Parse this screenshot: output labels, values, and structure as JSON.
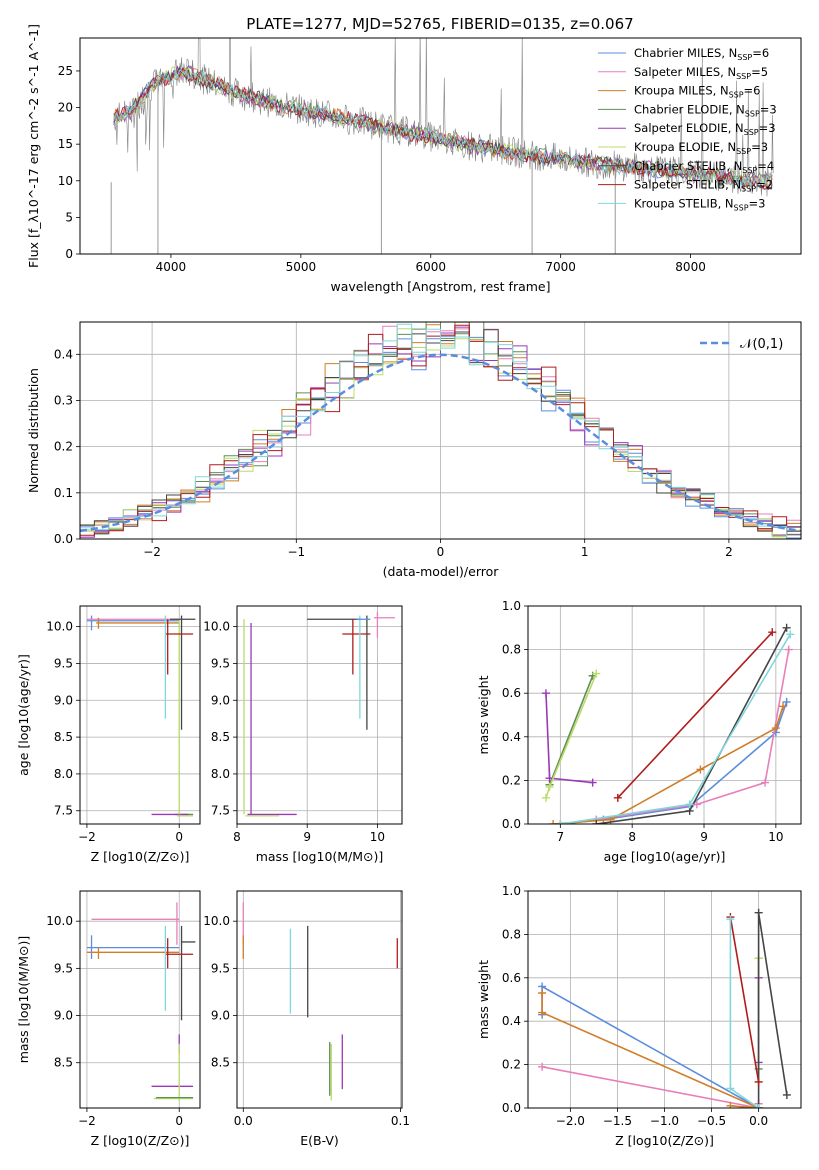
{
  "page_title": "PLATE=1277, MJD=52765, FIBERID=0135, z=0.067",
  "colors": {
    "Chabrier MILES": "#5b8ddf",
    "Salpeter MILES": "#e87fb9",
    "Kroupa MILES": "#d07e2a",
    "Chabrier ELODIE": "#5f8f55",
    "Salpeter ELODIE": "#9a39b8",
    "Kroupa ELODIE": "#b9dc6a",
    "Chabrier STELIB": "#454545",
    "Salpeter STELIB": "#b01c1c",
    "Kroupa STELIB": "#7fd7dc"
  },
  "chart_data": [
    {
      "id": "spectrum",
      "type": "line",
      "title": "PLATE=1277, MJD=52765, FIBERID=0135, z=0.067",
      "xlabel": "wavelength [Angstrom, rest frame]",
      "ylabel": "Flux [f_λ10^-17 erg cm^-2 s^-1 A^-1]",
      "xlim": [
        3300,
        8850
      ],
      "ylim": [
        0,
        29.5
      ],
      "xticks": [
        4000,
        5000,
        6000,
        7000,
        8000
      ],
      "yticks": [
        0,
        5,
        10,
        15,
        20,
        25
      ],
      "grid": false,
      "legend": "top-right",
      "legend_entries": [
        {
          "model": "Chabrier MILES",
          "nssp": "6"
        },
        {
          "model": "Salpeter MILES",
          "nssp": "5"
        },
        {
          "model": "Kroupa MILES",
          "nssp": "6"
        },
        {
          "model": "Chabrier ELODIE",
          "nssp": "3"
        },
        {
          "model": "Salpeter ELODIE",
          "nssp": "3"
        },
        {
          "model": "Kroupa ELODIE",
          "nssp": "3"
        },
        {
          "model": "Chabrier STELIB",
          "nssp": "4"
        },
        {
          "model": "Salpeter STELIB",
          "nssp": "2"
        },
        {
          "model": "Kroupa STELIB",
          "nssp": "3"
        }
      ],
      "continuum": {
        "x": [
          3550,
          3700,
          3850,
          4000,
          4100,
          4300,
          4500,
          4800,
          5200,
          5600,
          6000,
          6400,
          6800,
          7200,
          7600,
          8000,
          8400,
          8650
        ],
        "y": [
          18.5,
          19.5,
          23.0,
          24.5,
          25.0,
          23.5,
          22.0,
          20.5,
          19.0,
          17.5,
          16.0,
          14.5,
          13.5,
          12.5,
          11.8,
          11.0,
          10.2,
          9.8
        ]
      }
    },
    {
      "id": "residuals",
      "type": "histogram",
      "xlabel": "(data-model)/error",
      "ylabel": "Normed distribution",
      "xlim": [
        -2.5,
        2.5
      ],
      "ylim": [
        0,
        0.47
      ],
      "xticks": [
        -2,
        -1,
        0,
        1,
        2
      ],
      "yticks": [
        0.0,
        0.1,
        0.2,
        0.3,
        0.4
      ],
      "grid": true,
      "legend": "top-right",
      "legend_label": "𝒩(0,1)",
      "bin_width": 0.1
    },
    {
      "id": "age-vs-z",
      "type": "scatter",
      "xlabel": "Z [log10(Z/Z⊙)]",
      "ylabel": "age [log10(age/yr)]",
      "xlim": [
        -2.15,
        0.45
      ],
      "ylim": [
        7.32,
        10.28
      ],
      "xticks": [
        -2,
        0
      ],
      "yticks": [
        7.5,
        8.0,
        8.5,
        9.0,
        9.5,
        10.0
      ],
      "grid": true
    },
    {
      "id": "age-vs-mass",
      "type": "scatter",
      "xlabel": "mass [log10(M/M⊙)]",
      "xlim": [
        8.0,
        10.35
      ],
      "ylim": [
        7.32,
        10.28
      ],
      "xticks": [
        8,
        9,
        10
      ],
      "yticks": [
        7.5,
        8.0,
        8.5,
        9.0,
        9.5,
        10.0
      ],
      "grid": true
    },
    {
      "id": "weight-vs-age",
      "type": "line",
      "xlabel": "age [log10(age/yr)]",
      "ylabel": "mass weight",
      "xlim": [
        6.55,
        10.35
      ],
      "ylim": [
        0,
        1.0
      ],
      "xticks": [
        7,
        8,
        9,
        10
      ],
      "yticks": [
        0.0,
        0.2,
        0.4,
        0.6,
        0.8,
        1.0
      ],
      "grid": true,
      "series": [
        {
          "model": "Chabrier MILES",
          "x": [
            7.0,
            7.6,
            8.8,
            10.0,
            10.15
          ],
          "y": [
            0.0,
            0.02,
            0.08,
            0.42,
            0.56
          ]
        },
        {
          "model": "Salpeter MILES",
          "x": [
            7.0,
            7.5,
            8.9,
            9.85,
            10.18
          ],
          "y": [
            0.0,
            0.02,
            0.09,
            0.19,
            0.8
          ]
        },
        {
          "model": "Kroupa MILES",
          "x": [
            6.9,
            7.7,
            8.95,
            10.0,
            10.1
          ],
          "y": [
            0.0,
            0.02,
            0.25,
            0.44,
            0.54
          ]
        },
        {
          "model": "Chabrier ELODIE",
          "x": [
            6.85,
            7.45
          ],
          "y": [
            0.18,
            0.68
          ]
        },
        {
          "model": "Salpeter ELODIE",
          "x": [
            6.8,
            6.85,
            7.45
          ],
          "y": [
            0.6,
            0.21,
            0.19
          ]
        },
        {
          "model": "Kroupa ELODIE",
          "x": [
            6.8,
            6.85,
            7.5
          ],
          "y": [
            0.12,
            0.17,
            0.69
          ]
        },
        {
          "model": "Chabrier STELIB",
          "x": [
            7.5,
            8.8,
            10.15
          ],
          "y": [
            0.0,
            0.06,
            0.9
          ]
        },
        {
          "model": "Salpeter STELIB",
          "x": [
            7.8,
            9.95
          ],
          "y": [
            0.12,
            0.88
          ]
        },
        {
          "model": "Kroupa STELIB",
          "x": [
            7.0,
            8.8,
            10.2
          ],
          "y": [
            0.0,
            0.09,
            0.87
          ]
        }
      ]
    },
    {
      "id": "mass-vs-z",
      "type": "scatter",
      "xlabel": "Z [log10(Z/Z⊙)]",
      "ylabel": "mass [log10(M/M⊙)]",
      "xlim": [
        -2.15,
        0.45
      ],
      "ylim": [
        8.02,
        10.32
      ],
      "xticks": [
        -2,
        0
      ],
      "yticks": [
        8.5,
        9.0,
        9.5,
        10.0
      ],
      "grid": true
    },
    {
      "id": "mass-vs-ebv",
      "type": "scatter",
      "xlabel": "E(B-V)",
      "xlim": [
        -0.004,
        0.101
      ],
      "ylim": [
        8.02,
        10.32
      ],
      "xticks": [
        0.0,
        0.1
      ],
      "yticks": [
        8.5,
        9.0,
        9.5,
        10.0
      ],
      "grid": true
    },
    {
      "id": "weight-vs-z",
      "type": "line",
      "xlabel": "Z [log10(Z/Z⊙)]",
      "ylabel": "mass weight",
      "xlim": [
        -2.45,
        0.45
      ],
      "ylim": [
        0,
        1.0
      ],
      "xticks": [
        -2.0,
        -1.5,
        -1.0,
        -0.5,
        0.0
      ],
      "yticks": [
        0.0,
        0.2,
        0.4,
        0.6,
        0.8,
        1.0
      ],
      "grid": true,
      "series": [
        {
          "model": "Chabrier MILES",
          "x": [
            -2.3,
            -2.3,
            0.0,
            0.0
          ],
          "y": [
            0.43,
            0.56,
            0.0,
            0.02
          ]
        },
        {
          "model": "Salpeter MILES",
          "x": [
            -2.3,
            0.0,
            0.0
          ],
          "y": [
            0.19,
            0.0,
            0.02
          ]
        },
        {
          "model": "Kroupa MILES",
          "x": [
            -2.3,
            -2.3,
            0.0,
            -0.3
          ],
          "y": [
            0.53,
            0.44,
            0.0,
            0.01
          ]
        },
        {
          "model": "Chabrier ELODIE",
          "x": [
            0.0,
            0.0
          ],
          "y": [
            0.18,
            0.69
          ]
        },
        {
          "model": "Salpeter ELODIE",
          "x": [
            0.0,
            0.0
          ],
          "y": [
            0.21,
            0.6
          ]
        },
        {
          "model": "Kroupa ELODIE",
          "x": [
            0.0,
            0.0
          ],
          "y": [
            0.12,
            0.69
          ]
        },
        {
          "model": "Chabrier STELIB",
          "x": [
            0.3,
            0.0,
            0.0
          ],
          "y": [
            0.06,
            0.9,
            0.0
          ]
        },
        {
          "model": "Salpeter STELIB",
          "x": [
            -0.3,
            0.0
          ],
          "y": [
            0.88,
            0.12
          ]
        },
        {
          "model": "Kroupa STELIB",
          "x": [
            -0.3,
            -0.3,
            0.0
          ],
          "y": [
            0.87,
            0.09,
            0.0
          ]
        }
      ]
    }
  ]
}
